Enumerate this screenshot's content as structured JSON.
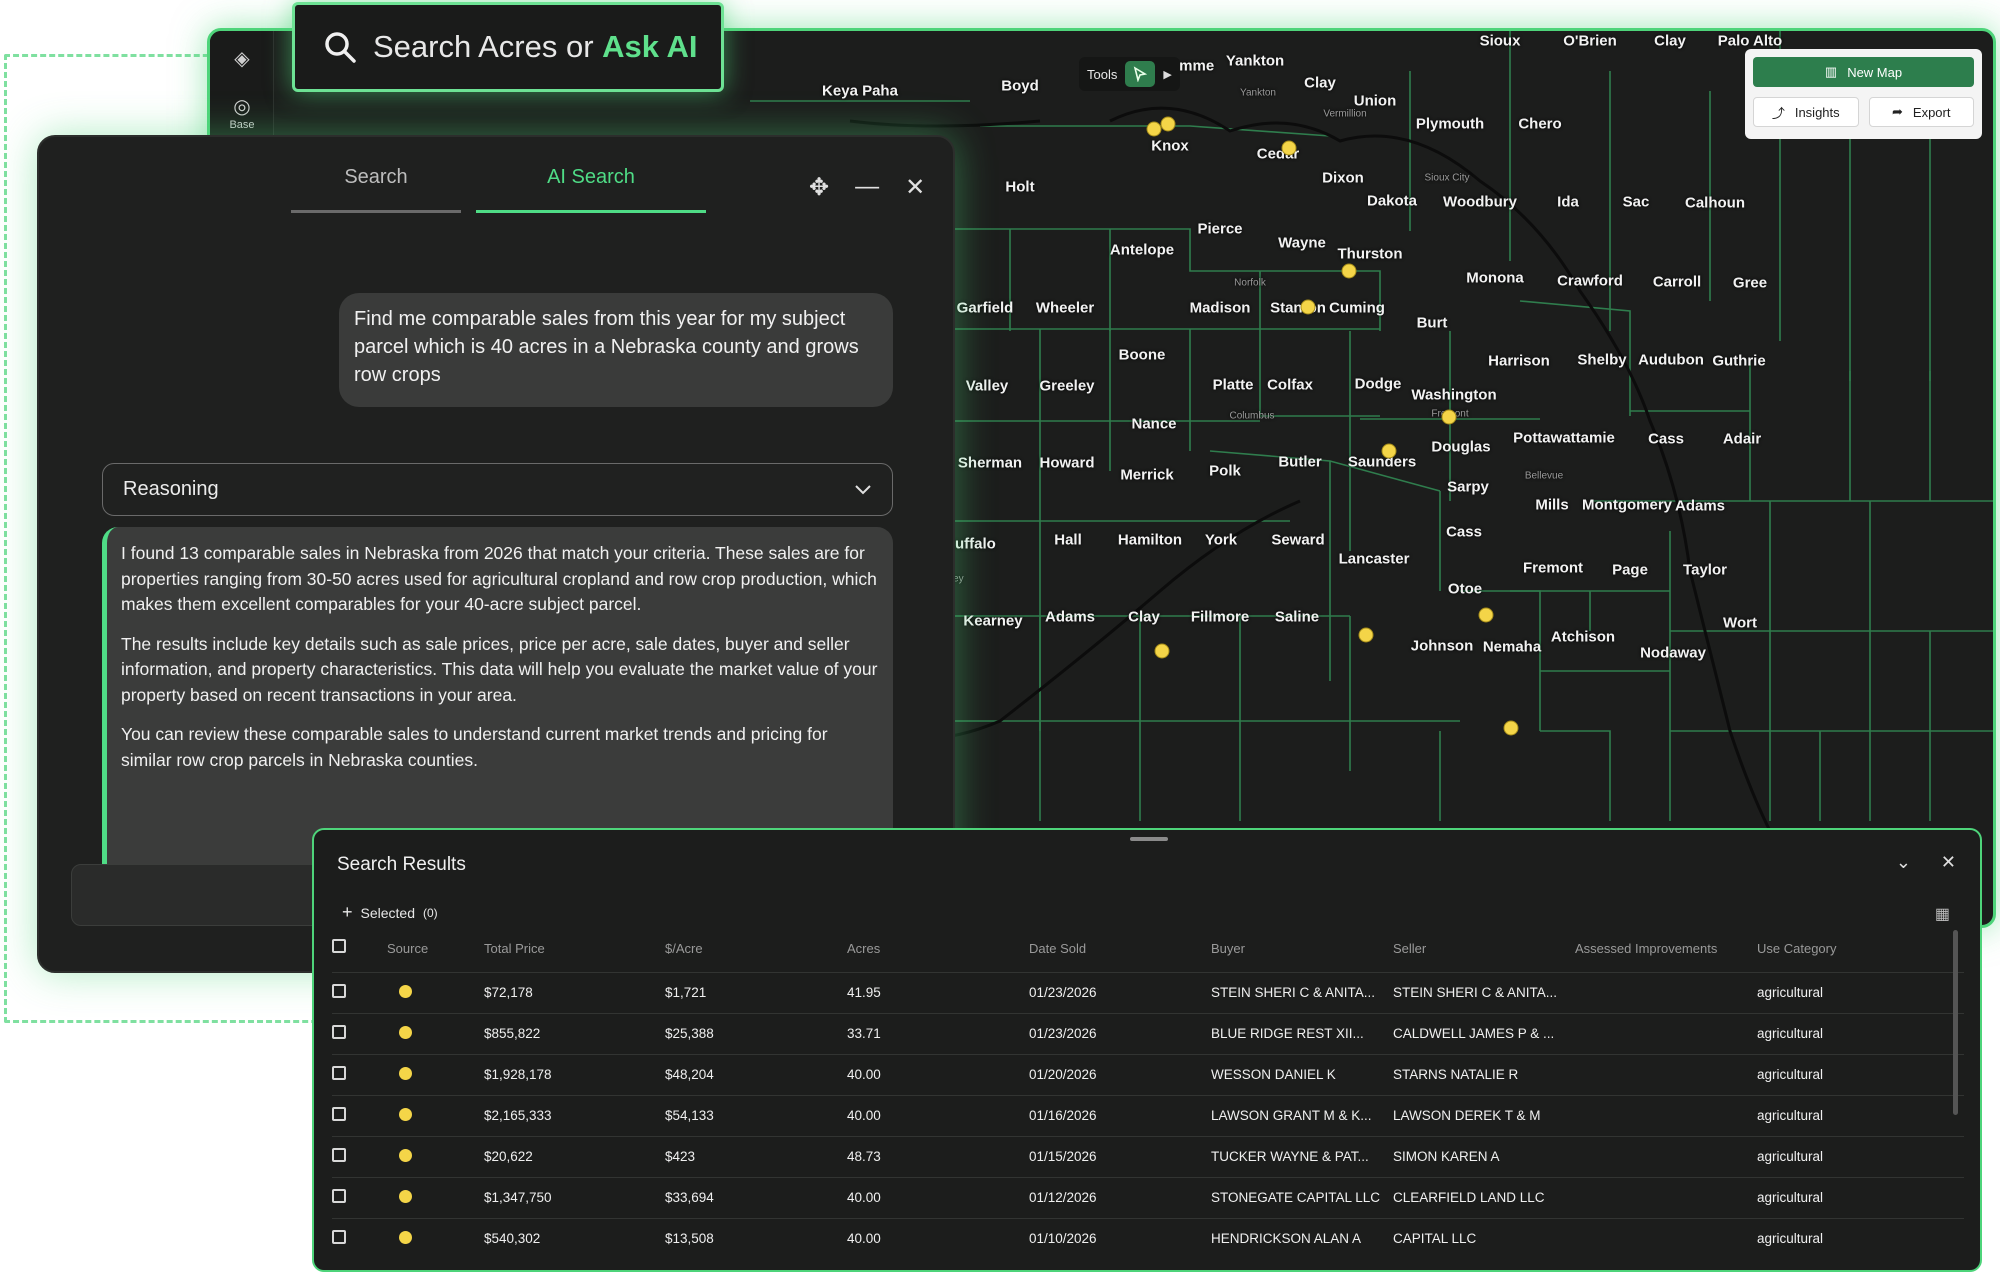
{
  "search_bar": {
    "icon": "search-icon",
    "text_main": "Search Acres or ",
    "text_ai": "Ask AI"
  },
  "map": {
    "rail": {
      "layers_icon": "layers-icon",
      "base_icon": "globe-icon",
      "base_label": "Base"
    },
    "tools": {
      "label": "Tools",
      "icon": "cursor-select-icon"
    },
    "panel": {
      "new_map": "New Map",
      "insights": "Insights",
      "export": "Export"
    },
    "counties": [
      "Sioux",
      "O'Brien",
      "Clay",
      "Palo Alto",
      "Bon Homme",
      "Yankton",
      "Keya Paha",
      "Boyd",
      "Clay",
      "Union",
      "Plymouth",
      "Chero",
      "Knox",
      "Cedar",
      "Holt",
      "Dixon",
      "Dakota",
      "Woodbury",
      "Ida",
      "Sac",
      "Calhoun",
      "Pierce",
      "Wayne",
      "Antelope",
      "Thurston",
      "Monona",
      "Crawford",
      "Carroll",
      "Gree",
      "Garfield",
      "Wheeler",
      "Madison",
      "Stanton",
      "Cuming",
      "Burt",
      "Boone",
      "Harrison",
      "Shelby",
      "Audubon",
      "Guthrie",
      "Valley",
      "Greeley",
      "Platte",
      "Colfax",
      "Dodge",
      "Washington",
      "Nance",
      "Pottawattamie",
      "Cass",
      "Adair",
      "Sherman",
      "Howard",
      "Merrick",
      "Polk",
      "Butler",
      "Saunders",
      "Douglas",
      "Sarpy",
      "Mills",
      "Montgomery",
      "Adams",
      "Buffalo",
      "Hall",
      "Hamilton",
      "York",
      "Seward",
      "Lancaster",
      "Cass",
      "Fremont",
      "Page",
      "Taylor",
      "Otoe",
      "Kearney",
      "Adams",
      "Clay",
      "Fillmore",
      "Saline",
      "Johnson",
      "Nemaha",
      "Atchison",
      "Nodaway",
      "Wort"
    ],
    "places": [
      "Yankton",
      "Vermillion",
      "Sioux City",
      "Norfolk",
      "Columbus",
      "Fremont",
      "Bellevue",
      "Kearney"
    ],
    "accent": "#4ed47a",
    "dot_color": "#f4d548"
  },
  "chat": {
    "tabs": {
      "search": "Search",
      "ai_search": "AI Search"
    },
    "icons": {
      "move": "move-icon",
      "minimize": "minimize-icon",
      "close": "close-icon"
    },
    "user_message": "Find me comparable sales from this year for my subject parcel which is 40 acres in a Nebraska county and grows row crops",
    "reasoning_label": "Reasoning",
    "answer": [
      "I found 13 comparable sales in Nebraska from 2026 that match your criteria. These sales are for properties ranging from 30-50 acres used for agricultural cropland and row crop production, which makes them excellent comparables for your 40-acre subject parcel.",
      "The results include key details such as sale prices, price per acre, sale dates, buyer and seller information, and property characteristics. This data will help you evaluate the market value of your property based on recent transactions in your area.",
      "You can review these comparable sales to understand current market trends and pricing for similar row crop parcels in Nebraska counties."
    ]
  },
  "results": {
    "title": "Search Results",
    "selected_label": "Selected",
    "selected_count": "(0)",
    "columns": [
      "Source",
      "Total Price",
      "$/Acre",
      "Acres",
      "Date Sold",
      "Buyer",
      "Seller",
      "Assessed Improvements",
      "Use Category"
    ],
    "rows": [
      [
        "",
        "$72,178",
        "$1,721",
        "41.95",
        "01/23/2026",
        "STEIN SHERI C & ANITA...",
        "STEIN SHERI C & ANITA...",
        "",
        "agricultural"
      ],
      [
        "",
        "$855,822",
        "$25,388",
        "33.71",
        "01/23/2026",
        "BLUE RIDGE REST XII...",
        "CALDWELL JAMES P & ...",
        "",
        "agricultural"
      ],
      [
        "",
        "$1,928,178",
        "$48,204",
        "40.00",
        "01/20/2026",
        "WESSON DANIEL K",
        "STARNS NATALIE R",
        "",
        "agricultural"
      ],
      [
        "",
        "$2,165,333",
        "$54,133",
        "40.00",
        "01/16/2026",
        "LAWSON GRANT M & K...",
        "LAWSON DEREK T & M",
        "",
        "agricultural"
      ],
      [
        "",
        "$20,622",
        "$423",
        "48.73",
        "01/15/2026",
        "TUCKER WAYNE & PAT...",
        "SIMON KAREN A",
        "",
        "agricultural"
      ],
      [
        "",
        "$1,347,750",
        "$33,694",
        "40.00",
        "01/12/2026",
        "STONEGATE CAPITAL LLC",
        "CLEARFIELD LAND LLC",
        "",
        "agricultural"
      ],
      [
        "",
        "$540,302",
        "$13,508",
        "40.00",
        "01/10/2026",
        "HENDRICKSON ALAN A",
        "CAPITAL LLC",
        "",
        "agricultural"
      ]
    ]
  }
}
